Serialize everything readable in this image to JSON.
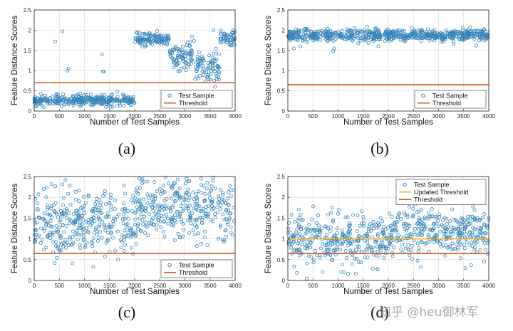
{
  "colors": {
    "test_sample": "#1f77b4",
    "threshold": "#d95319",
    "updated_threshold": "#edb120",
    "grid": "#d9d9d9",
    "axis": "#222222"
  },
  "captions": [
    "(a)",
    "(b)",
    "(c)",
    "(d)"
  ],
  "watermark": "知乎 @heu御林军",
  "chart_data": [
    {
      "id": "a",
      "type": "scatter",
      "xlabel": "Number of Test Samples",
      "ylabel": "Feature Distance Scores",
      "xlim": [
        0,
        4000
      ],
      "ylim": [
        0,
        2.5
      ],
      "xticks": [
        0,
        500,
        1000,
        1500,
        2000,
        2500,
        3000,
        3500,
        4000
      ],
      "yticks": [
        0,
        0.5,
        1,
        1.5,
        2,
        2.5
      ],
      "grid": true,
      "legend_position": "bottom-right",
      "series": [
        {
          "name": "Test Sample",
          "kind": "scatter",
          "color": "#1f77b4",
          "segments": [
            {
              "x": [
                0,
                2000
              ],
              "center": 0.27,
              "spread": 0.07
            },
            {
              "x": [
                2000,
                2700
              ],
              "center": 1.78,
              "spread": 0.08
            },
            {
              "x": [
                2700,
                3200
              ],
              "center": 1.38,
              "spread": 0.18
            },
            {
              "x": [
                3200,
                3700
              ],
              "center": 1.1,
              "spread": 0.22
            },
            {
              "x": [
                3700,
                4000
              ],
              "center": 1.8,
              "spread": 0.09
            }
          ],
          "outliers": [
            [
              420,
              1.72
            ],
            [
              560,
              1.97
            ],
            [
              660,
              1.0
            ],
            [
              680,
              1.05
            ],
            [
              1350,
              1.4
            ],
            [
              1370,
              0.97
            ],
            [
              1390,
              0.98
            ],
            [
              3570,
              2.0
            ],
            [
              3600,
              0.6
            ]
          ]
        },
        {
          "name": "Threshold",
          "kind": "hline",
          "y": 0.7,
          "color": "#d95319"
        }
      ]
    },
    {
      "id": "b",
      "type": "scatter",
      "xlabel": "Number of Test Samples",
      "ylabel": "Feature Distance Scores",
      "xlim": [
        0,
        4000
      ],
      "ylim": [
        0,
        2.5
      ],
      "xticks": [
        0,
        500,
        1000,
        1500,
        2000,
        2500,
        3000,
        3500,
        4000
      ],
      "yticks": [
        0,
        0.5,
        1,
        1.5,
        2,
        2.5
      ],
      "grid": true,
      "legend_position": "bottom-right",
      "series": [
        {
          "name": "Test Sample",
          "kind": "scatter",
          "color": "#1f77b4",
          "segments": [
            {
              "x": [
                0,
                4000
              ],
              "center": 1.88,
              "spread": 0.07
            }
          ],
          "outliers": [
            [
              120,
              1.55
            ],
            [
              250,
              1.6
            ],
            [
              900,
              1.48
            ],
            [
              920,
              1.55
            ],
            [
              1800,
              1.6
            ],
            [
              3300,
              1.65
            ],
            [
              3750,
              1.62
            ]
          ]
        },
        {
          "name": "Threshold",
          "kind": "hline",
          "y": 0.65,
          "color": "#d95319"
        }
      ]
    },
    {
      "id": "c",
      "type": "scatter",
      "xlabel": "Number of Test Samples",
      "ylabel": "Feature Distance Scores",
      "xlim": [
        0,
        4000
      ],
      "ylim": [
        0,
        2.5
      ],
      "xticks": [
        0,
        500,
        1000,
        1500,
        2000,
        2500,
        3000,
        3500,
        4000
      ],
      "yticks": [
        0,
        0.5,
        1,
        1.5,
        2,
        2.5
      ],
      "grid": true,
      "legend_position": "bottom-right",
      "series": [
        {
          "name": "Test Sample",
          "kind": "scatter",
          "color": "#1f77b4",
          "segments": [
            {
              "x": [
                0,
                2000
              ],
              "center": 1.35,
              "spread": 0.4
            },
            {
              "x": [
                2000,
                4000
              ],
              "center": 1.7,
              "spread": 0.35
            }
          ],
          "outliers": []
        },
        {
          "name": "Threshold",
          "kind": "hline",
          "y": 0.65,
          "color": "#d95319"
        }
      ]
    },
    {
      "id": "d",
      "type": "scatter",
      "xlabel": "Number of Test Samples",
      "ylabel": "Feature Distance Scores",
      "xlim": [
        0,
        4000
      ],
      "ylim": [
        0,
        2.5
      ],
      "xticks": [
        0,
        500,
        1000,
        1500,
        2000,
        2500,
        3000,
        3500,
        4000
      ],
      "yticks": [
        0,
        0.5,
        1,
        1.5,
        2,
        2.5
      ],
      "grid": true,
      "legend_position": "top-right",
      "series": [
        {
          "name": "Test Sample",
          "kind": "scatter",
          "color": "#1f77b4",
          "segments": [
            {
              "x": [
                0,
                2000
              ],
              "center": 0.95,
              "spread": 0.3
            },
            {
              "x": [
                2000,
                4000
              ],
              "center": 1.15,
              "spread": 0.3
            }
          ],
          "outliers": []
        },
        {
          "name": "Updated Threshold",
          "kind": "hline",
          "y": 1.0,
          "color": "#edb120"
        },
        {
          "name": "Threshold",
          "kind": "hline",
          "y": 0.65,
          "color": "#d95319"
        }
      ]
    }
  ]
}
